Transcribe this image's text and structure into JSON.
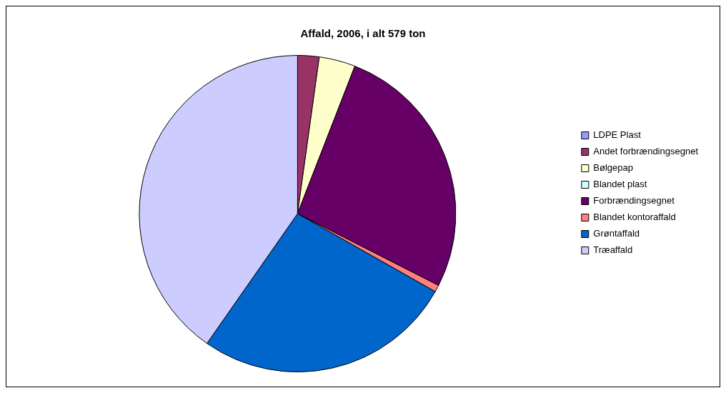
{
  "chart_data": {
    "type": "pie",
    "title": "Affald, 2006, i alt 579 ton",
    "categories": [
      "LDPE Plast",
      "Andet forbrændingsegnet",
      "Bølgepap",
      "Blandet plast",
      "Forbrændingsegnet",
      "Blandet kontoraffald",
      "Grøntaffald",
      "Træaffald"
    ],
    "values": [
      0,
      2.2,
      3.7,
      0,
      26.6,
      0.7,
      26.5,
      40.3
    ],
    "colors": [
      "#9999ff",
      "#993366",
      "#ffffcc",
      "#ccffff",
      "#660066",
      "#ff8080",
      "#0066cc",
      "#ccccff"
    ],
    "legend": "right"
  }
}
